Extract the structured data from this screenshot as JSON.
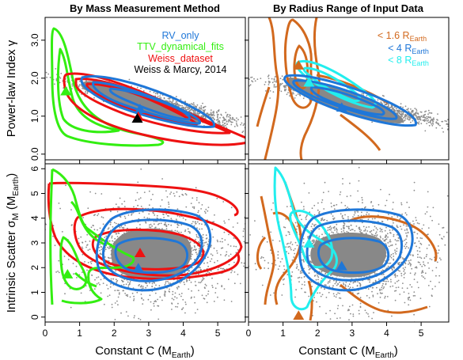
{
  "chart_data": [
    {
      "type": "scatter",
      "title": "By Mass Measurement Method",
      "xlabel": "",
      "ylabel": "Power-law Index γ",
      "ylabel_base": "Power-law Index",
      "ylabel_symbol": "γ",
      "xlim": [
        0,
        5.8
      ],
      "ylim": [
        -0.15,
        3.6
      ],
      "x_ticks": [
        "0",
        "1",
        "2",
        "3",
        "4",
        "5"
      ],
      "y_ticks": [
        "0.0",
        "1.0",
        "2.0",
        "3.0"
      ],
      "legend_position": "top-right",
      "legend": [
        {
          "label": "RV_only",
          "color": "#1f77d8"
        },
        {
          "label": "TTV_dynamical_fits",
          "color": "#33ee11"
        },
        {
          "label": "Weiss_dataset",
          "color": "#ee1111"
        },
        {
          "label": "Weiss & Marcy, 2014",
          "color": "#000000"
        }
      ],
      "markers": [
        {
          "x": 0.6,
          "y": 1.65,
          "color": "#33ee11"
        },
        {
          "x": 2.75,
          "y": 1.18,
          "color": "#1f77d8"
        },
        {
          "x": 2.7,
          "y": 0.98,
          "color": "#ee1111"
        },
        {
          "x": 2.67,
          "y": 0.93,
          "color": "#000000"
        }
      ]
    },
    {
      "type": "scatter",
      "title": "By Radius Range of Input Data",
      "xlabel": "",
      "ylabel": "",
      "xlim": [
        0,
        5.8
      ],
      "ylim": [
        -0.15,
        3.6
      ],
      "x_ticks": [
        "0",
        "1",
        "2",
        "3",
        "4",
        "5"
      ],
      "y_ticks": [
        "0.0",
        "1.0",
        "2.0",
        "3.0"
      ],
      "legend_position": "top-right",
      "legend": [
        {
          "label": "< 1.6 R",
          "sub": "Earth",
          "color": "#d2691e"
        },
        {
          "label": "< 4 R",
          "sub": "Earth",
          "color": "#1f77d8"
        },
        {
          "label": "< 8 R",
          "sub": "Earth",
          "color": "#22eeee"
        }
      ],
      "markers": [
        {
          "x": 1.45,
          "y": 2.33,
          "color": "#d2691e"
        },
        {
          "x": 2.7,
          "y": 1.22,
          "color": "#1f77d8"
        },
        {
          "x": 1.75,
          "y": 1.88,
          "color": "#22eeee"
        }
      ]
    },
    {
      "type": "scatter",
      "title": "",
      "xlabel": "Constant C (M",
      "xlabel_sub": "Earth",
      "xlabel_end": ")",
      "ylabel": "Intrinsic Scatter σ",
      "ylabel_base": "Intrinsic Scatter σ",
      "ylabel_m": "M",
      "ylabel_sub": "Earth",
      "xlim": [
        0,
        5.8
      ],
      "ylim": [
        -0.2,
        6.2
      ],
      "x_ticks": [
        "0",
        "1",
        "2",
        "3",
        "4",
        "5"
      ],
      "y_ticks": [
        "0",
        "1",
        "2",
        "3",
        "4",
        "5",
        "6"
      ],
      "markers": [
        {
          "x": 0.65,
          "y": 1.72,
          "color": "#33ee11"
        },
        {
          "x": 2.75,
          "y": 2.58,
          "color": "#ee1111"
        },
        {
          "x": 2.7,
          "y": 1.97,
          "color": "#1f77d8"
        }
      ]
    },
    {
      "type": "scatter",
      "title": "",
      "xlabel": "Constant C (M",
      "xlabel_sub": "Earth",
      "xlabel_end": ")",
      "ylabel": "",
      "xlim": [
        0,
        5.8
      ],
      "ylim": [
        -0.2,
        6.2
      ],
      "x_ticks": [
        "0",
        "1",
        "2",
        "3",
        "4",
        "5"
      ],
      "y_ticks": [
        "0",
        "1",
        "2",
        "3",
        "4",
        "5",
        "6"
      ],
      "markers": [
        {
          "x": 1.75,
          "y": 2.97,
          "color": "#22eeee"
        },
        {
          "x": 2.7,
          "y": 2.05,
          "color": "#1f77d8"
        },
        {
          "x": 1.45,
          "y": 0.05,
          "color": "#d2691e"
        }
      ]
    }
  ]
}
